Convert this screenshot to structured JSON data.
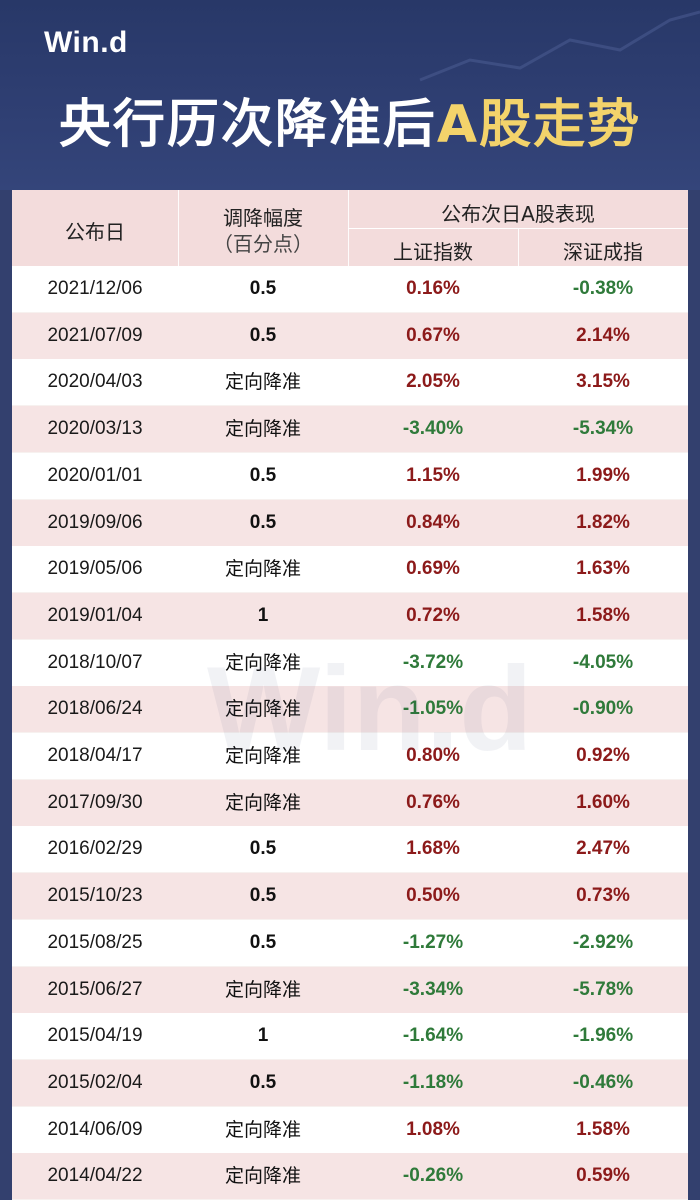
{
  "header": {
    "logo": "Win.d",
    "title_main": "央行历次降准后",
    "title_highlight": "A股走势"
  },
  "table": {
    "headers": {
      "date": "公布日",
      "cut_line1": "调降幅度",
      "cut_line2": "（百分点）",
      "group": "公布次日A股表现",
      "sh": "上证指数",
      "sz": "深证成指"
    },
    "rows": [
      {
        "date": "2021/12/06",
        "cut": "0.5",
        "sh": "0.16%",
        "sz": "-0.38%"
      },
      {
        "date": "2021/07/09",
        "cut": "0.5",
        "sh": "0.67%",
        "sz": "2.14%"
      },
      {
        "date": "2020/04/03",
        "cut": "定向降准",
        "sh": "2.05%",
        "sz": "3.15%"
      },
      {
        "date": "2020/03/13",
        "cut": "定向降准",
        "sh": "-3.40%",
        "sz": "-5.34%"
      },
      {
        "date": "2020/01/01",
        "cut": "0.5",
        "sh": "1.15%",
        "sz": "1.99%"
      },
      {
        "date": "2019/09/06",
        "cut": "0.5",
        "sh": "0.84%",
        "sz": "1.82%"
      },
      {
        "date": "2019/05/06",
        "cut": "定向降准",
        "sh": "0.69%",
        "sz": "1.63%"
      },
      {
        "date": "2019/01/04",
        "cut": "1",
        "sh": "0.72%",
        "sz": "1.58%"
      },
      {
        "date": "2018/10/07",
        "cut": "定向降准",
        "sh": "-3.72%",
        "sz": "-4.05%"
      },
      {
        "date": "2018/06/24",
        "cut": "定向降准",
        "sh": "-1.05%",
        "sz": "-0.90%"
      },
      {
        "date": "2018/04/17",
        "cut": "定向降准",
        "sh": "0.80%",
        "sz": "0.92%"
      },
      {
        "date": "2017/09/30",
        "cut": "定向降准",
        "sh": "0.76%",
        "sz": "1.60%"
      },
      {
        "date": "2016/02/29",
        "cut": "0.5",
        "sh": "1.68%",
        "sz": "2.47%"
      },
      {
        "date": "2015/10/23",
        "cut": "0.5",
        "sh": "0.50%",
        "sz": "0.73%"
      },
      {
        "date": "2015/08/25",
        "cut": "0.5",
        "sh": "-1.27%",
        "sz": "-2.92%"
      },
      {
        "date": "2015/06/27",
        "cut": "定向降准",
        "sh": "-3.34%",
        "sz": "-5.78%"
      },
      {
        "date": "2015/04/19",
        "cut": "1",
        "sh": "-1.64%",
        "sz": "-1.96%"
      },
      {
        "date": "2015/02/04",
        "cut": "0.5",
        "sh": "-1.18%",
        "sz": "-0.46%"
      },
      {
        "date": "2014/06/09",
        "cut": "定向降准",
        "sh": "1.08%",
        "sz": "1.58%"
      },
      {
        "date": "2014/04/22",
        "cut": "定向降准",
        "sh": "-0.26%",
        "sz": "0.59%"
      }
    ]
  },
  "colors": {
    "header_bg": "#2f3f73",
    "highlight": "#f3d36b",
    "positive": "#8c1a1a",
    "negative": "#2f7a3a"
  }
}
